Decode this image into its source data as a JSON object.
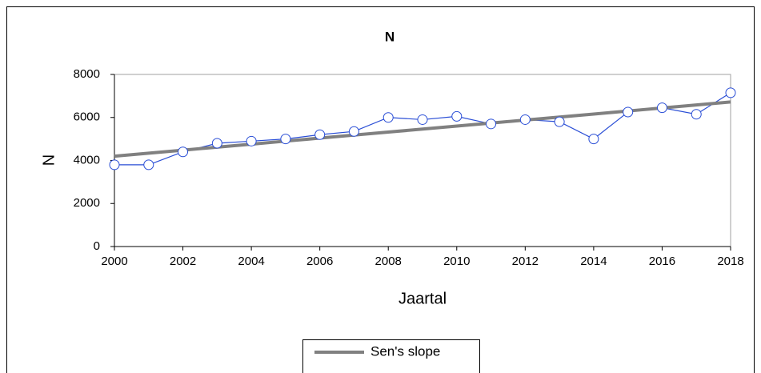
{
  "chart_data": {
    "type": "line",
    "title": "N",
    "x_label": "Jaartal",
    "y_label": "N",
    "x": [
      2000,
      2001,
      2002,
      2003,
      2004,
      2005,
      2006,
      2007,
      2008,
      2009,
      2010,
      2011,
      2012,
      2013,
      2014,
      2015,
      2016,
      2017,
      2018
    ],
    "series": [
      {
        "color": "#2a4ed6",
        "marker": "circle",
        "values": [
          3800,
          3800,
          4400,
          4800,
          4900,
          5000,
          5200,
          5350,
          6000,
          5900,
          6050,
          5700,
          5900,
          5800,
          5000,
          6250,
          6450,
          6150,
          7150
        ]
      },
      {
        "name": "Sen's slope",
        "color": "#808080",
        "values": [
          4200,
          4340,
          4480,
          4620,
          4760,
          4900,
          5040,
          5180,
          5320,
          5460,
          5600,
          5740,
          5880,
          6020,
          6160,
          6300,
          6440,
          6580,
          6720
        ]
      }
    ],
    "xlim": [
      2000,
      2018
    ],
    "xticks": [
      2000,
      2002,
      2004,
      2006,
      2008,
      2010,
      2012,
      2014,
      2016,
      2018
    ],
    "ylim": [
      0,
      8000
    ],
    "yticks": [
      0,
      2000,
      4000,
      6000,
      8000
    ],
    "legend": "bottom"
  }
}
